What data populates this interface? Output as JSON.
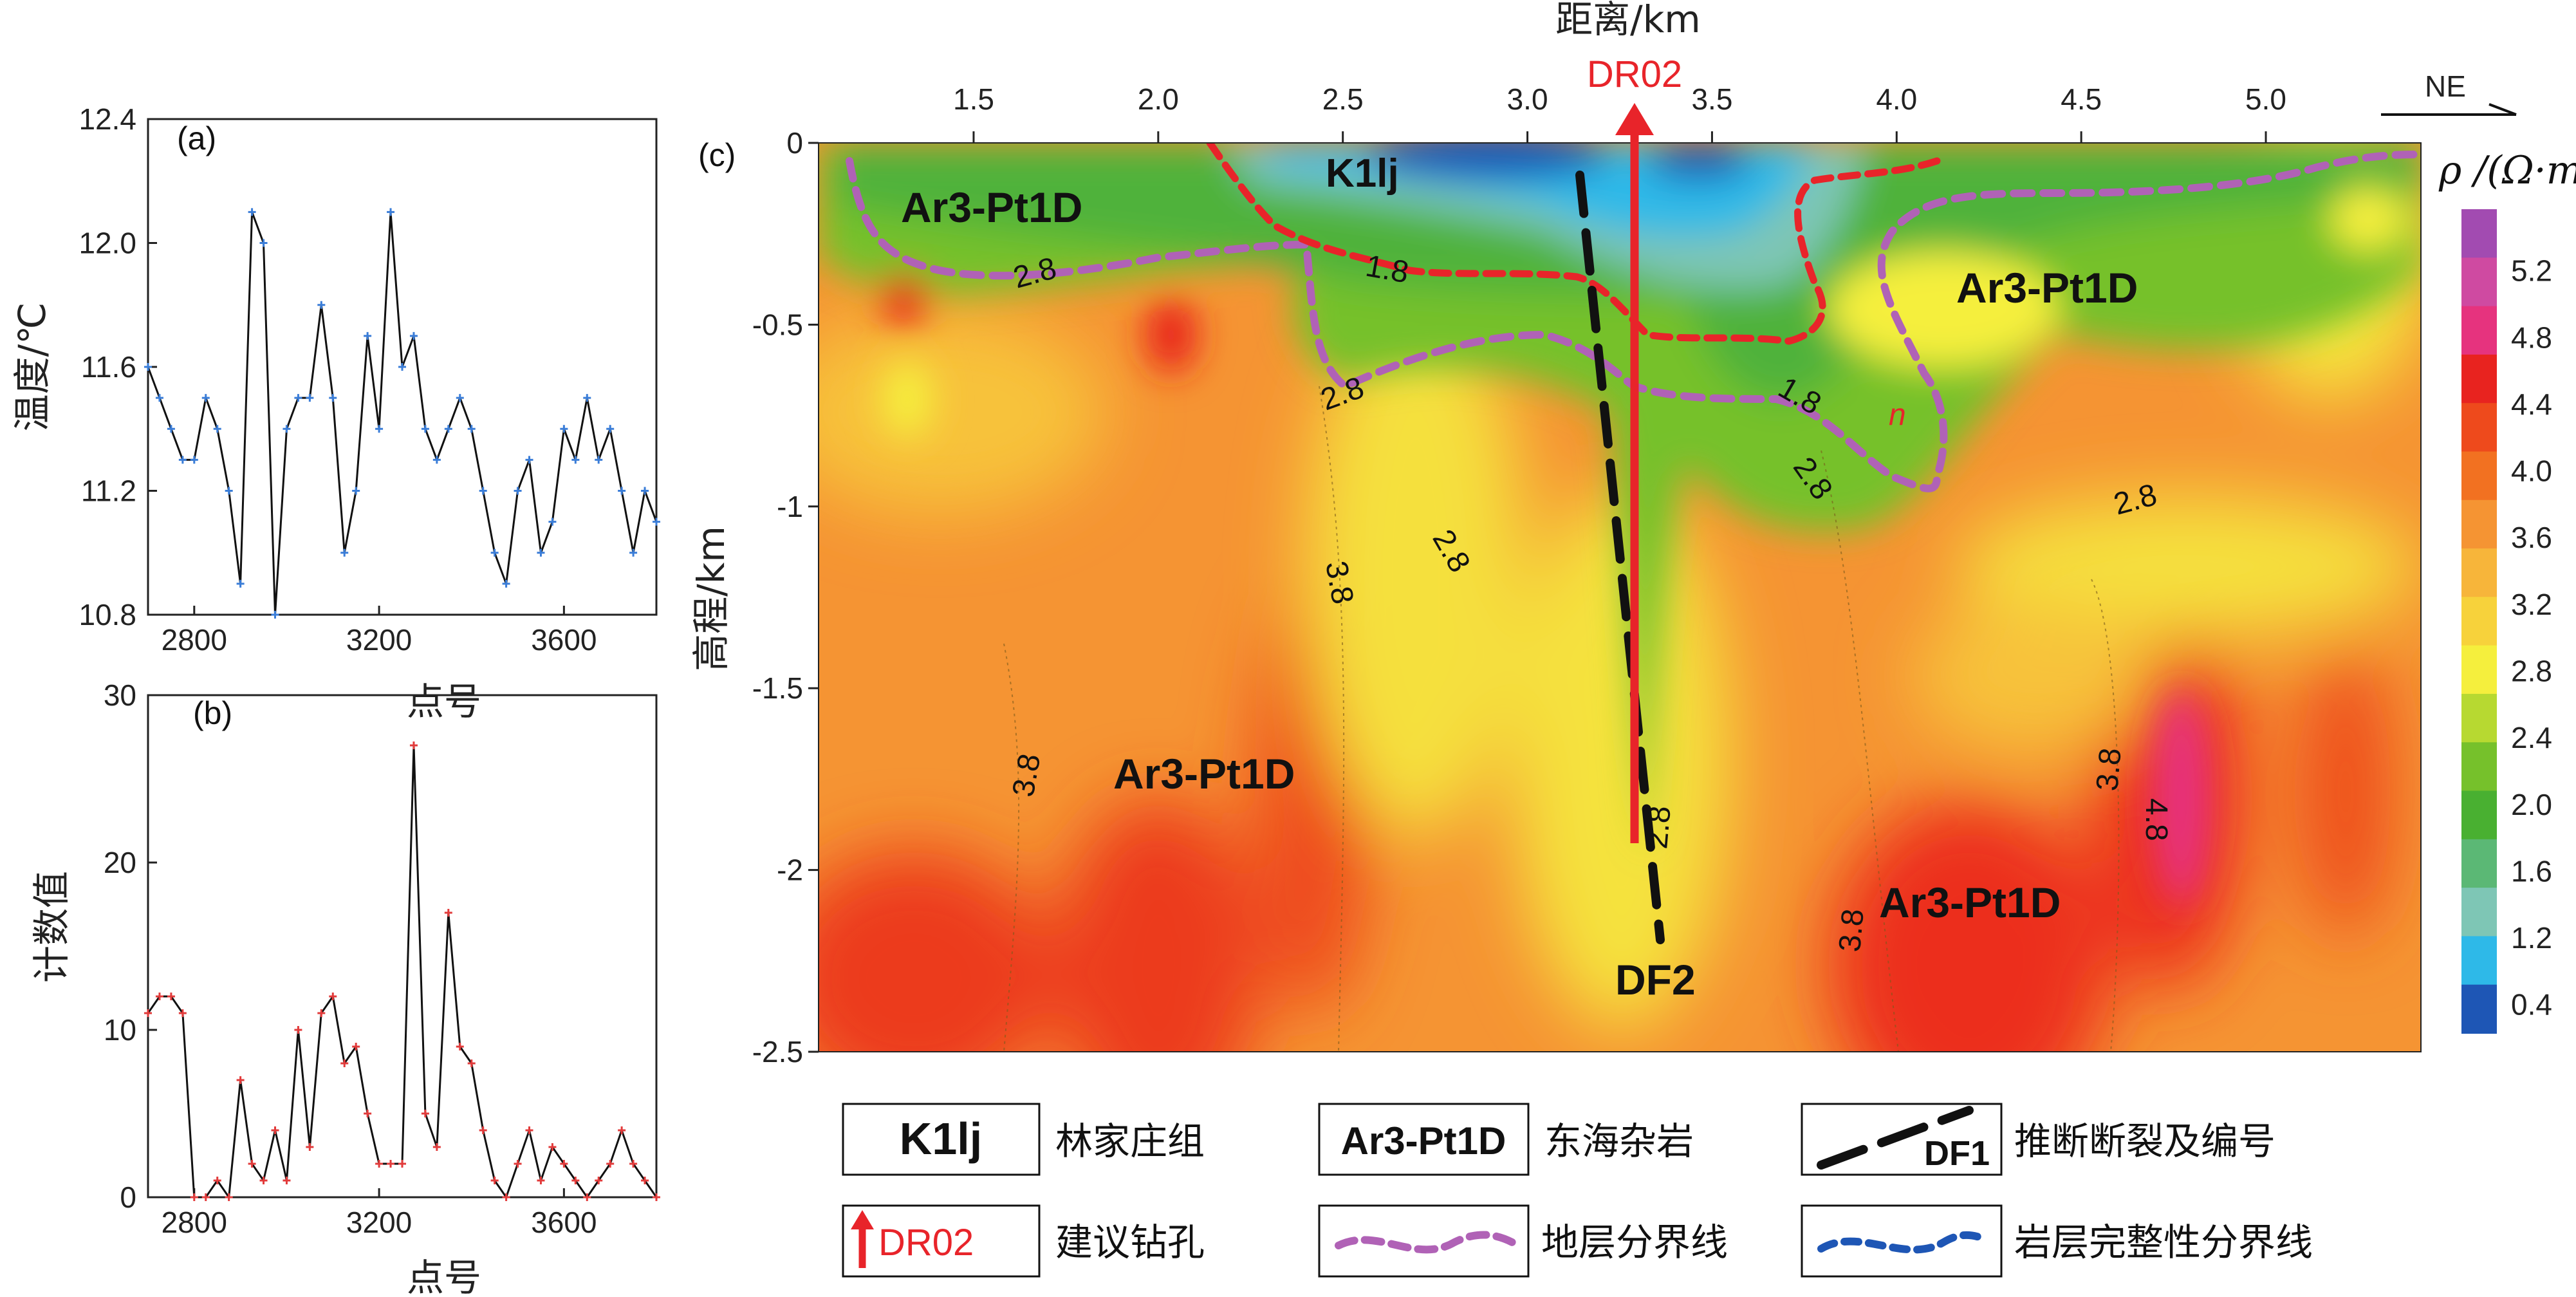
{
  "chart_data": [
    {
      "id": "a",
      "type": "line",
      "panel_label": "(a)",
      "xlabel": "点号",
      "ylabel": "温度/℃",
      "xlim": [
        2700,
        3800
      ],
      "ylim": [
        10.8,
        12.4
      ],
      "xticks": [
        "2800",
        "3200",
        "3600"
      ],
      "yticks": [
        "10.8",
        "11.2",
        "11.6",
        "12.0",
        "12.4"
      ],
      "marker_color": "#3a7dd8",
      "line_color": "#111111",
      "x": [
        2700,
        2725,
        2750,
        2775,
        2800,
        2825,
        2850,
        2875,
        2900,
        2925,
        2950,
        2975,
        3000,
        3025,
        3050,
        3075,
        3100,
        3125,
        3150,
        3175,
        3200,
        3225,
        3250,
        3275,
        3300,
        3325,
        3350,
        3375,
        3400,
        3425,
        3450,
        3475,
        3500,
        3525,
        3550,
        3575,
        3600,
        3625,
        3650,
        3675,
        3700,
        3725,
        3750,
        3775,
        3800
      ],
      "y": [
        11.6,
        11.5,
        11.4,
        11.3,
        11.3,
        11.5,
        11.4,
        11.2,
        10.9,
        12.1,
        12.0,
        10.8,
        11.4,
        11.5,
        11.5,
        11.8,
        11.5,
        11.0,
        11.2,
        11.7,
        11.4,
        12.1,
        11.6,
        11.7,
        11.4,
        11.3,
        11.4,
        11.5,
        11.4,
        11.2,
        11.0,
        10.9,
        11.2,
        11.3,
        11.0,
        11.1,
        11.4,
        11.3,
        11.5,
        11.3,
        11.4,
        11.2,
        11.0,
        11.2,
        11.1
      ]
    },
    {
      "id": "b",
      "type": "line",
      "panel_label": "(b)",
      "xlabel": "点号",
      "ylabel": "计数值",
      "xlim": [
        2700,
        3800
      ],
      "ylim": [
        0,
        30
      ],
      "xticks": [
        "2800",
        "3200",
        "3600"
      ],
      "yticks": [
        "0",
        "10",
        "20",
        "30"
      ],
      "marker_color": "#e23b3b",
      "line_color": "#111111",
      "x": [
        2700,
        2725,
        2750,
        2775,
        2800,
        2825,
        2850,
        2875,
        2900,
        2925,
        2950,
        2975,
        3000,
        3025,
        3050,
        3075,
        3100,
        3125,
        3150,
        3175,
        3200,
        3225,
        3250,
        3275,
        3300,
        3325,
        3350,
        3375,
        3400,
        3425,
        3450,
        3475,
        3500,
        3525,
        3550,
        3575,
        3600,
        3625,
        3650,
        3675,
        3700,
        3725,
        3750,
        3775,
        3800
      ],
      "y": [
        11,
        12,
        12,
        11,
        0,
        0,
        1,
        0,
        7,
        2,
        1,
        4,
        1,
        10,
        3,
        11,
        12,
        8,
        9,
        5,
        2,
        2,
        2,
        27,
        5,
        3,
        17,
        9,
        8,
        4,
        1,
        0,
        2,
        4,
        1,
        3,
        2,
        1,
        0,
        1,
        2,
        4,
        2,
        1,
        0
      ]
    },
    {
      "id": "c",
      "type": "heatmap",
      "panel_label": "(c)",
      "xlabel": "距离/km",
      "ylabel": "高程/km",
      "xlim": [
        1.08,
        5.42
      ],
      "ylim": [
        -2.5,
        0
      ],
      "xticks": [
        "1.5",
        "2.0",
        "2.5",
        "3.0",
        "3.5",
        "4.0",
        "4.5",
        "5.0"
      ],
      "yticks": [
        "0",
        "-0.5",
        "-1",
        "-1.5",
        "-2",
        "-2.5"
      ],
      "direction": "NE",
      "colorbar_label": "ρ /(Ω·m)",
      "colorbar_ticks": [
        "5.2",
        "4.8",
        "4.4",
        "4.0",
        "3.6",
        "3.2",
        "2.8",
        "2.4",
        "2.0",
        "1.6",
        "1.2",
        "0.4"
      ],
      "colorbar_colors": [
        "#a24bb1",
        "#cf4aa1",
        "#e6337e",
        "#e8231f",
        "#ee4a1c",
        "#f27121",
        "#f59433",
        "#f7b53a",
        "#f7d23b",
        "#f5ef3d",
        "#b7d931",
        "#76c12b",
        "#49b031",
        "#5bb875",
        "#7ec6b5",
        "#2eb9e8",
        "#1e56b5"
      ],
      "contour_labels": [
        "2.8",
        "1.8",
        "2.8",
        "1.8",
        "n",
        "2.8",
        "2.8",
        "2.8",
        "3.8",
        "3.8",
        "2.8",
        "3.8",
        "3.8",
        "4.8"
      ],
      "unit_labels": [
        "Ar3-Pt1D",
        "K1lj",
        "Ar3-Pt1D",
        "Ar3-Pt1D",
        "Ar3-Pt1D"
      ],
      "fault_label": "DF2",
      "borehole_label": "DR02",
      "borehole_color": "#e8242a",
      "stratum_boundary_color": "#b062b6",
      "integrity_boundary_color": "#e8242a"
    }
  ],
  "legend": {
    "items": [
      {
        "symbol": "K1lj",
        "label": "林家庄组"
      },
      {
        "symbol": "Ar3-Pt1D",
        "label": "东海杂岩"
      },
      {
        "symbol": "DF1",
        "label": "推断断裂及编号"
      },
      {
        "symbol": "DR02",
        "label": "建议钻孔"
      },
      {
        "symbol": "",
        "label": "地层分界线"
      },
      {
        "symbol": "",
        "label": "岩层完整性分界线"
      }
    ]
  }
}
